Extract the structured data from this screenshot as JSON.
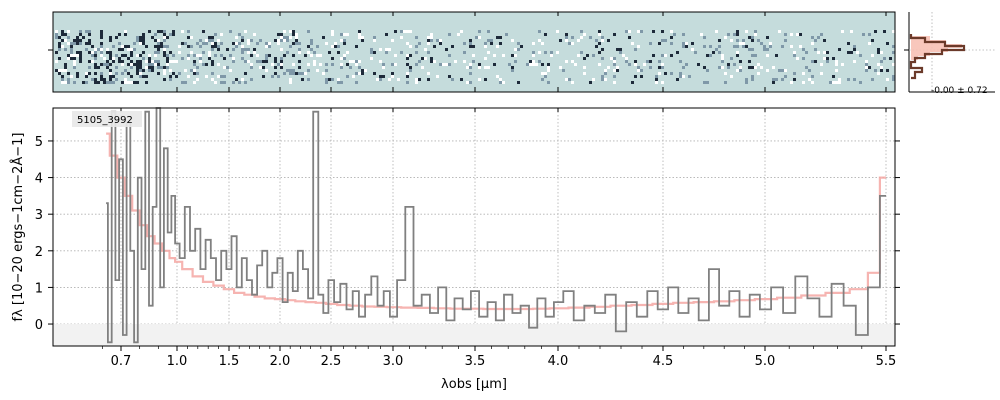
{
  "chart_data": {
    "type": "line",
    "object_id": "5105_3992",
    "xlabel": "λobs [μm]",
    "ylabel": "fλ [10−20 ergs−1cm−2Å−1]",
    "x_ticks": [
      "0.7",
      "1.0",
      "1.5",
      "2.0",
      "2.5",
      "3.0",
      "3.5",
      "4.0",
      "4.5",
      "5.0",
      "5.5"
    ],
    "y_ticks": [
      "0",
      "1",
      "2",
      "3",
      "4",
      "5"
    ],
    "ylim": [
      -0.6,
      5.9
    ],
    "grid": true,
    "profile_annotation": "-0.00 ± 0.72",
    "colors": {
      "data": "#808080",
      "model": "#f4a7a3",
      "twod_background": "#c5dcdc",
      "profile_line": "#6b3a2a",
      "profile_fill": "#f7c1b5"
    },
    "series": [
      {
        "name": "spectrum",
        "x": [
          0.62,
          0.64,
          0.66,
          0.68,
          0.7,
          0.72,
          0.74,
          0.76,
          0.78,
          0.8,
          0.82,
          0.84,
          0.86,
          0.88,
          0.9,
          0.92,
          0.94,
          0.96,
          0.98,
          1.0,
          1.05,
          1.1,
          1.15,
          1.2,
          1.25,
          1.3,
          1.35,
          1.4,
          1.45,
          1.5,
          1.55,
          1.6,
          1.65,
          1.7,
          1.75,
          1.8,
          1.85,
          1.9,
          1.95,
          2.0,
          2.05,
          2.1,
          2.15,
          2.2,
          2.25,
          2.3,
          2.35,
          2.4,
          2.45,
          2.5,
          2.55,
          2.6,
          2.65,
          2.7,
          2.75,
          2.8,
          2.85,
          2.9,
          2.95,
          3.0,
          3.05,
          3.1,
          3.15,
          3.2,
          3.25,
          3.3,
          3.35,
          3.4,
          3.45,
          3.5,
          3.55,
          3.6,
          3.65,
          3.7,
          3.75,
          3.8,
          3.85,
          3.9,
          3.95,
          4.0,
          4.05,
          4.1,
          4.15,
          4.2,
          4.25,
          4.3,
          4.35,
          4.4,
          4.45,
          4.5,
          4.55,
          4.6,
          4.65,
          4.7,
          4.75,
          4.8,
          4.85,
          4.9,
          4.95,
          5.0,
          5.05,
          5.1,
          5.15,
          5.2,
          5.25,
          5.3,
          5.35,
          5.4,
          5.45,
          5.5
        ],
        "values": [
          3.3,
          -0.5,
          5.8,
          1.2,
          4.5,
          -0.3,
          5.5,
          2.0,
          -0.5,
          4.0,
          1.5,
          5.8,
          0.5,
          3.2,
          5.9,
          1.0,
          4.8,
          2.5,
          3.5,
          2.2,
          1.8,
          3.2,
          2.0,
          2.6,
          1.5,
          2.3,
          1.8,
          1.2,
          2.0,
          1.5,
          2.4,
          1.0,
          1.8,
          1.2,
          0.8,
          1.6,
          2.0,
          1.0,
          1.4,
          1.8,
          0.6,
          1.4,
          0.9,
          2.0,
          1.5,
          0.7,
          5.8,
          0.8,
          0.3,
          1.2,
          0.6,
          1.1,
          0.4,
          0.9,
          0.2,
          0.8,
          1.3,
          0.5,
          0.9,
          0.2,
          1.2,
          3.2,
          0.5,
          0.8,
          0.3,
          1.0,
          0.1,
          0.7,
          0.4,
          0.9,
          0.2,
          0.6,
          0.1,
          0.8,
          0.3,
          0.5,
          -0.1,
          0.7,
          0.2,
          0.6,
          0.9,
          0.1,
          0.5,
          0.3,
          0.8,
          -0.2,
          0.6,
          0.2,
          0.9,
          0.4,
          1.0,
          0.3,
          0.7,
          0.1,
          1.5,
          0.5,
          0.9,
          0.2,
          0.8,
          0.4,
          1.0,
          0.3,
          1.3,
          0.7,
          0.2,
          1.1,
          0.5,
          -0.3,
          1.0,
          3.5
        ]
      },
      {
        "name": "model",
        "x": [
          0.62,
          0.66,
          0.7,
          0.74,
          0.78,
          0.82,
          0.86,
          0.9,
          0.94,
          0.98,
          1.0,
          1.1,
          1.2,
          1.3,
          1.4,
          1.5,
          1.6,
          1.7,
          1.8,
          1.9,
          2.0,
          2.1,
          2.2,
          2.3,
          2.4,
          2.5,
          2.6,
          2.7,
          2.8,
          2.9,
          3.0,
          3.1,
          3.2,
          3.3,
          3.4,
          3.5,
          3.6,
          3.7,
          3.8,
          3.9,
          4.0,
          4.1,
          4.2,
          4.3,
          4.4,
          4.5,
          4.6,
          4.7,
          4.8,
          4.9,
          5.0,
          5.1,
          5.2,
          5.3,
          5.4,
          5.45,
          5.5
        ],
        "values": [
          5.2,
          4.6,
          4.0,
          3.5,
          3.1,
          2.7,
          2.4,
          2.2,
          2.0,
          1.8,
          1.7,
          1.5,
          1.3,
          1.15,
          1.05,
          0.95,
          0.85,
          0.8,
          0.75,
          0.7,
          0.68,
          0.65,
          0.62,
          0.6,
          0.58,
          0.55,
          0.52,
          0.5,
          0.48,
          0.47,
          0.46,
          0.45,
          0.44,
          0.43,
          0.42,
          0.42,
          0.41,
          0.41,
          0.41,
          0.42,
          0.43,
          0.45,
          0.47,
          0.5,
          0.52,
          0.55,
          0.58,
          0.6,
          0.62,
          0.65,
          0.68,
          0.72,
          0.78,
          0.85,
          0.95,
          1.4,
          4.0
        ]
      }
    ]
  }
}
